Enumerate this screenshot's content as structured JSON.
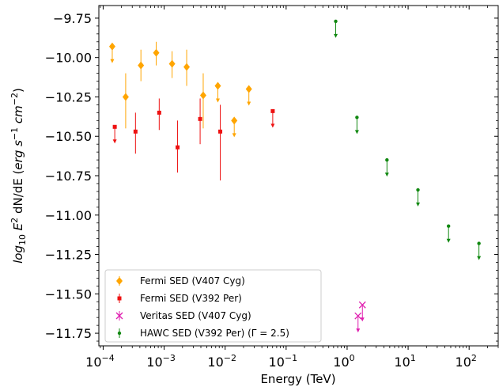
{
  "chart_data": {
    "type": "scatter",
    "xlabel": "Energy (TeV)",
    "ylabel": "log10 E^2 dN/dE (erg s^-1 cm^-2)",
    "xscale": "log",
    "xlim": [
      8.5e-05,
      300
    ],
    "ylim": [
      -11.83,
      -9.67
    ],
    "x_ticks": [
      0.0001,
      0.001,
      0.01,
      0.1,
      1,
      10,
      100
    ],
    "x_tick_labels": [
      {
        "base": "10",
        "exp": "−4"
      },
      {
        "base": "10",
        "exp": "−3"
      },
      {
        "base": "10",
        "exp": "−2"
      },
      {
        "base": "10",
        "exp": "−1"
      },
      {
        "base": "10",
        "exp": "0"
      },
      {
        "base": "10",
        "exp": "1"
      },
      {
        "base": "10",
        "exp": "2"
      }
    ],
    "y_ticks": [
      -9.75,
      -10.0,
      -10.25,
      -10.5,
      -10.75,
      -11.0,
      -11.25,
      -11.5,
      -11.75
    ],
    "y_tick_labels": [
      "−9.75",
      "−10.00",
      "−10.25",
      "−10.50",
      "−10.75",
      "−11.00",
      "−11.25",
      "−11.50",
      "−11.75"
    ],
    "grid": false,
    "legend_position": "lower-left",
    "series": [
      {
        "name": "Fermi SED (V407 Cyg)",
        "marker": "diamond",
        "color": "#ffa500",
        "points": [
          {
            "x": 0.000141,
            "y": -9.93,
            "ul": true
          },
          {
            "x": 0.000234,
            "y": -10.25,
            "lo": -10.45,
            "hi": -10.1
          },
          {
            "x": 0.000416,
            "y": -10.05,
            "lo": -10.15,
            "hi": -9.95
          },
          {
            "x": 0.000741,
            "y": -9.97,
            "lo": -10.05,
            "hi": -9.9
          },
          {
            "x": 0.00135,
            "y": -10.04,
            "lo": -10.13,
            "hi": -9.96
          },
          {
            "x": 0.00234,
            "y": -10.06,
            "lo": -10.18,
            "hi": -9.95
          },
          {
            "x": 0.00437,
            "y": -10.24,
            "lo": -10.45,
            "hi": -10.1
          },
          {
            "x": 0.00759,
            "y": -10.18,
            "ul": true
          },
          {
            "x": 0.0141,
            "y": -10.4,
            "ul": true
          },
          {
            "x": 0.0245,
            "y": -10.2,
            "ul": true
          }
        ]
      },
      {
        "name": "Fermi SED (V392 Per)",
        "marker": "square",
        "color": "#ee1111",
        "points": [
          {
            "x": 0.000155,
            "y": -10.44,
            "ul": true
          },
          {
            "x": 0.000339,
            "y": -10.47,
            "lo": -10.61,
            "hi": -10.35
          },
          {
            "x": 0.00083,
            "y": -10.35,
            "lo": -10.46,
            "hi": -10.26
          },
          {
            "x": 0.00166,
            "y": -10.57,
            "lo": -10.73,
            "hi": -10.4
          },
          {
            "x": 0.00389,
            "y": -10.39,
            "lo": -10.55,
            "hi": -10.26
          },
          {
            "x": 0.00832,
            "y": -10.47,
            "lo": -10.78,
            "hi": -10.3
          },
          {
            "x": 0.0603,
            "y": -10.34,
            "ul": true
          }
        ]
      },
      {
        "name": "Veritas SED (V407 Cyg)",
        "marker": "x",
        "color": "#e020b0",
        "points": [
          {
            "x": 1.51,
            "y": -11.64,
            "ul": true
          },
          {
            "x": 1.78,
            "y": -11.57,
            "ul": true
          }
        ]
      },
      {
        "name": "HAWC SED (V392 Per) (Γ = 2.5)",
        "marker": "circle",
        "color": "#118811",
        "points": [
          {
            "x": 0.65,
            "y": -9.77,
            "ul": true
          },
          {
            "x": 1.45,
            "y": -10.38,
            "ul": true
          },
          {
            "x": 4.5,
            "y": -10.65,
            "ul": true
          },
          {
            "x": 14.5,
            "y": -10.84,
            "ul": true
          },
          {
            "x": 46,
            "y": -11.07,
            "ul": true
          },
          {
            "x": 145,
            "y": -11.18,
            "ul": true
          }
        ]
      }
    ]
  }
}
